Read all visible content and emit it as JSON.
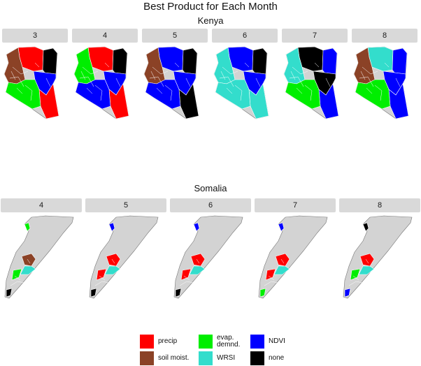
{
  "title": "Best Product for Each Month",
  "colors": {
    "precip": "#ff0000",
    "soil": "#8b4226",
    "evap": "#00ee00",
    "wrsi": "#33ddcc",
    "ndvi": "#0000ff",
    "none": "#000000",
    "land": "#d3d3d3",
    "border": "#777777"
  },
  "kenya": {
    "label": "Kenya",
    "months": [
      {
        "label": "3",
        "north": "precip",
        "west": "soil",
        "east": "ndvi",
        "southeast": "precip",
        "south": "evap",
        "northeast": "none"
      },
      {
        "label": "4",
        "north": "precip",
        "west": "evap",
        "east": "ndvi",
        "southeast": "precip",
        "south": "ndvi",
        "northeast": "none"
      },
      {
        "label": "5",
        "north": "ndvi",
        "west": "soil",
        "east": "ndvi",
        "southeast": "none",
        "south": "ndvi",
        "northeast": "none"
      },
      {
        "label": "6",
        "north": "ndvi",
        "west": "wrsi",
        "east": "ndvi",
        "southeast": "wrsi",
        "south": "wrsi",
        "northeast": "none"
      },
      {
        "label": "7",
        "north": "none",
        "west": "wrsi",
        "east": "none",
        "southeast": "ndvi",
        "south": "evap",
        "northeast": "ndvi"
      },
      {
        "label": "8",
        "north": "wrsi",
        "west": "soil",
        "east": "ndvi",
        "southeast": "ndvi",
        "south": "evap",
        "northeast": "ndvi"
      }
    ]
  },
  "somalia": {
    "label": "Somalia",
    "months": [
      {
        "label": "4",
        "northwest": "evap",
        "south_a": "soil",
        "south_b": "wrsi",
        "south_c": "evap",
        "tip": "none"
      },
      {
        "label": "5",
        "northwest": "ndvi",
        "south_a": "precip",
        "south_b": "wrsi",
        "south_c": "precip",
        "tip": "none"
      },
      {
        "label": "6",
        "northwest": "ndvi",
        "south_a": "precip",
        "south_b": "wrsi",
        "south_c": "precip",
        "tip": "none"
      },
      {
        "label": "7",
        "northwest": "ndvi",
        "south_a": "precip",
        "south_b": "wrsi",
        "south_c": "precip",
        "tip": "evap"
      },
      {
        "label": "8",
        "northwest": "none",
        "south_a": "precip",
        "south_b": "wrsi",
        "south_c": "evap",
        "tip": "ndvi"
      }
    ]
  },
  "legend": [
    {
      "label": "precip",
      "color_key": "precip"
    },
    {
      "label": "soil moist.",
      "color_key": "soil"
    },
    {
      "label": "evap.\ndemnd.",
      "color_key": "evap"
    },
    {
      "label": "WRSI",
      "color_key": "wrsi"
    },
    {
      "label": "NDVI",
      "color_key": "ndvi"
    },
    {
      "label": "none",
      "color_key": "none"
    }
  ]
}
